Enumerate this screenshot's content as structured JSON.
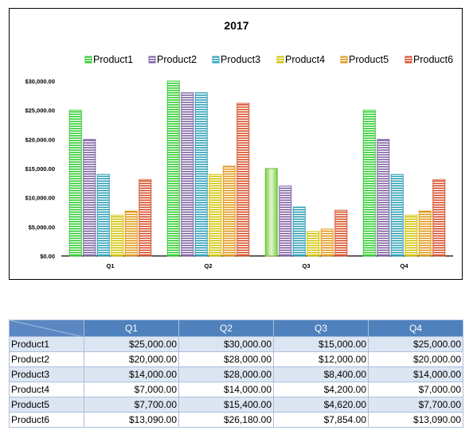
{
  "chart_data": {
    "type": "bar",
    "title": "2017",
    "categories": [
      "Q1",
      "Q2",
      "Q3",
      "Q4"
    ],
    "series": [
      {
        "name": "Product1",
        "values": [
          25000,
          30000,
          15000,
          25000
        ]
      },
      {
        "name": "Product2",
        "values": [
          20000,
          28000,
          12000,
          20000
        ]
      },
      {
        "name": "Product3",
        "values": [
          14000,
          28000,
          8400,
          14000
        ]
      },
      {
        "name": "Product4",
        "values": [
          7000,
          14000,
          4200,
          7000
        ]
      },
      {
        "name": "Product5",
        "values": [
          7700,
          15400,
          4620,
          7700
        ]
      },
      {
        "name": "Product6",
        "values": [
          13090,
          26180,
          7854,
          13090
        ]
      }
    ],
    "yticks": [
      "$0.00",
      "$5,000.00",
      "$10,000.00",
      "$15,000.00",
      "$20,000.00",
      "$25,000.00",
      "$30,000.00"
    ],
    "ylim": [
      0,
      30000
    ],
    "legend_position": "top",
    "grid": false,
    "colors": [
      "#33cc33",
      "#8064a2",
      "#31a0b8",
      "#d4c40a",
      "#e09a1c",
      "#d8502a"
    ]
  },
  "table": {
    "headers": [
      "Q1",
      "Q2",
      "Q3",
      "Q4"
    ],
    "rows": [
      {
        "label": "Product1",
        "cells": [
          "$25,000.00",
          "$30,000.00",
          "$15,000.00",
          "$25,000.00"
        ]
      },
      {
        "label": "Product2",
        "cells": [
          "$20,000.00",
          "$28,000.00",
          "$12,000.00",
          "$20,000.00"
        ]
      },
      {
        "label": "Product3",
        "cells": [
          "$14,000.00",
          "$28,000.00",
          "$8,400.00",
          "$14,000.00"
        ]
      },
      {
        "label": "Product4",
        "cells": [
          "$7,000.00",
          "$14,000.00",
          "$4,200.00",
          "$7,000.00"
        ]
      },
      {
        "label": "Product5",
        "cells": [
          "$7,700.00",
          "$15,400.00",
          "$4,620.00",
          "$7,700.00"
        ]
      },
      {
        "label": "Product6",
        "cells": [
          "$13,090.00",
          "$26,180.00",
          "$7,854.00",
          "$13,090.00"
        ]
      }
    ]
  }
}
